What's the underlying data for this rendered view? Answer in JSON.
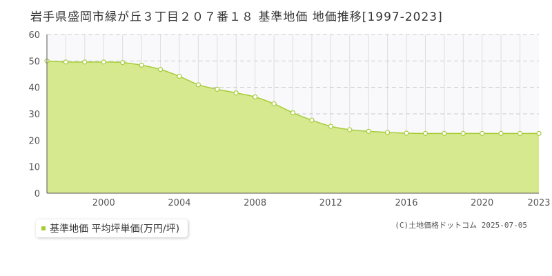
{
  "chart_data": {
    "type": "area",
    "title": "岩手県盛岡市緑が丘３丁目２０７番１８ 基準地価 地価推移[1997-2023]",
    "xlabel": "",
    "ylabel": "",
    "xlim": [
      1997,
      2023
    ],
    "ylim": [
      0,
      60
    ],
    "x_ticks": [
      2000,
      2004,
      2008,
      2012,
      2016,
      2020,
      2023
    ],
    "y_ticks": [
      0,
      10,
      20,
      30,
      40,
      50,
      60
    ],
    "grid": true,
    "legend_position": "bottom-left",
    "series": [
      {
        "name": "基準地価 平均坪単価(万円/坪)",
        "color": "#a6cc38",
        "fill": "#d6e98f",
        "x": [
          1997,
          1998,
          1999,
          2000,
          2001,
          2002,
          2003,
          2004,
          2005,
          2006,
          2007,
          2008,
          2009,
          2010,
          2011,
          2012,
          2013,
          2014,
          2015,
          2016,
          2017,
          2018,
          2019,
          2020,
          2021,
          2022,
          2023
        ],
        "values": [
          50.0,
          49.6,
          49.6,
          49.6,
          49.4,
          48.4,
          46.8,
          44.2,
          41.0,
          39.3,
          37.9,
          36.4,
          33.8,
          30.4,
          27.6,
          25.3,
          24.0,
          23.4,
          23.0,
          22.7,
          22.6,
          22.6,
          22.6,
          22.6,
          22.6,
          22.6,
          22.6
        ]
      }
    ]
  },
  "copyright": "(C)土地価格ドットコム 2025-07-05"
}
